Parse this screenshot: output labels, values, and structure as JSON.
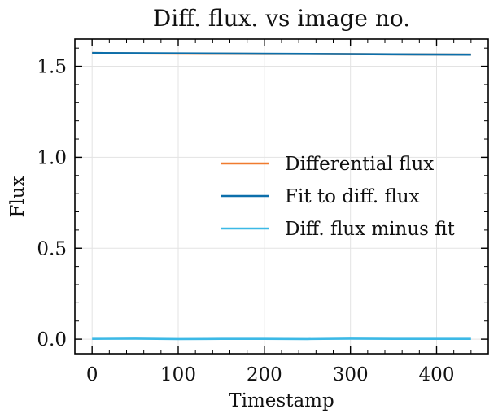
{
  "chart_data": {
    "type": "line",
    "title": "Diff. flux. vs image no.",
    "xlabel": "Timestamp",
    "ylabel": "Flux",
    "xlim": [
      -20,
      460
    ],
    "ylim": [
      -0.08,
      1.65
    ],
    "xticks": [
      0,
      100,
      200,
      300,
      400
    ],
    "xtick_labels": [
      "0",
      "100",
      "200",
      "300",
      "400"
    ],
    "yticks": [
      0.0,
      0.5,
      1.0,
      1.5
    ],
    "ytick_labels": [
      "0.0",
      "0.5",
      "1.0",
      "1.5"
    ],
    "grid": true,
    "legend_position": "center-right",
    "series": [
      {
        "name": "Differential flux",
        "color": "#f07b2f",
        "x": [
          0,
          50,
          100,
          150,
          200,
          250,
          300,
          350,
          400,
          440
        ],
        "y": [
          1.573,
          1.571,
          1.57,
          1.569,
          1.568,
          1.568,
          1.567,
          1.566,
          1.565,
          1.564
        ]
      },
      {
        "name": "Fit to diff. flux",
        "color": "#0c6fab",
        "x": [
          0,
          440
        ],
        "y": [
          1.573,
          1.564
        ]
      },
      {
        "name": "Diff. flux minus fit",
        "color": "#3cb9e6",
        "x": [
          0,
          50,
          100,
          150,
          200,
          250,
          300,
          350,
          400,
          440
        ],
        "y": [
          0.002,
          0.003,
          0.001,
          0.002,
          0.002,
          0.001,
          0.003,
          0.002,
          0.002,
          0.002
        ]
      }
    ]
  }
}
